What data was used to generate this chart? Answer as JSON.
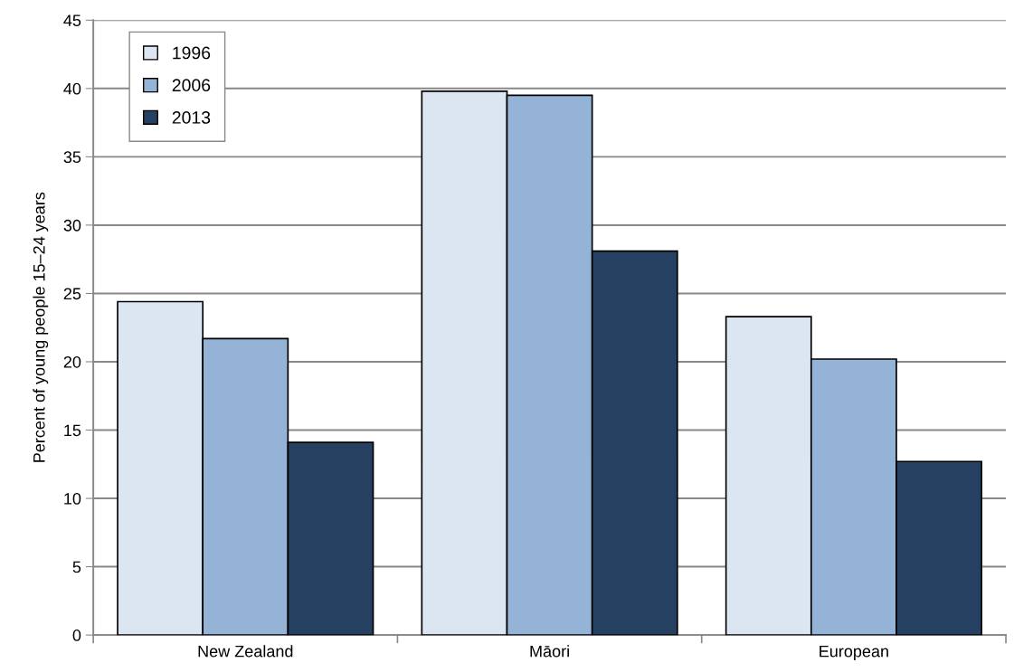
{
  "chart_data": {
    "type": "bar",
    "ylabel": "Percent of young people 15–24 years",
    "categories": [
      "New Zealand",
      "Māori",
      "European"
    ],
    "series": [
      {
        "name": "1996",
        "color": "#dce6f2",
        "values": [
          24.4,
          39.8,
          23.3
        ]
      },
      {
        "name": "2006",
        "color": "#95b3d7",
        "values": [
          21.7,
          39.5,
          20.2
        ]
      },
      {
        "name": "2013",
        "color": "#254061",
        "values": [
          14.1,
          28.1,
          12.7
        ]
      }
    ],
    "ylim": [
      0,
      45
    ],
    "yticks": [
      0,
      5,
      10,
      15,
      20,
      25,
      30,
      35,
      40,
      45
    ],
    "grid": "y",
    "legend": "top left"
  }
}
